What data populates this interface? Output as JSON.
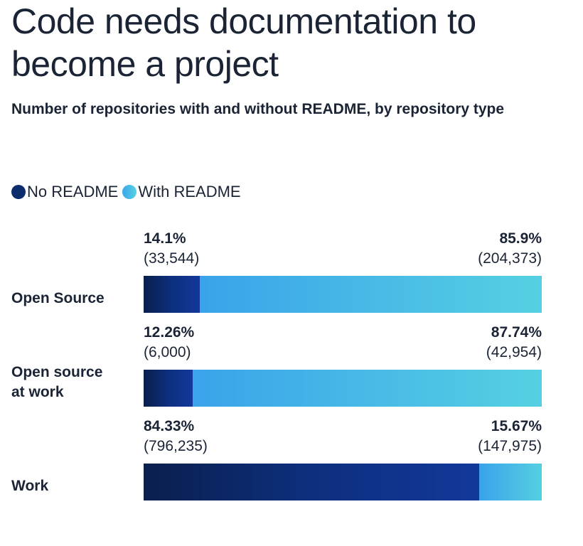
{
  "chart_data": {
    "type": "bar",
    "orientation": "horizontal",
    "stacked": true,
    "normalized": true,
    "title": "Code needs documentation to become a project",
    "subtitle": "Number of repositories with and without README, by repository type",
    "legend_position": "top-left",
    "grid": false,
    "categories": [
      "Open Source",
      "Open source at work",
      "Work"
    ],
    "series": [
      {
        "name": "No README",
        "color": "#0c2c6b",
        "percent_labels": [
          "14.1%",
          "12.26%",
          "84.33%"
        ],
        "count_labels": [
          "(33,544)",
          "(6,000)",
          "(796,235)"
        ],
        "values": [
          14.1,
          12.26,
          84.33
        ],
        "counts": [
          33544,
          6000,
          796235
        ]
      },
      {
        "name": "With README",
        "color": "#45bde6",
        "percent_labels": [
          "85.9%",
          "87.74%",
          "15.67%"
        ],
        "count_labels": [
          "(204,373)",
          "(42,954)",
          "(147,975)"
        ],
        "values": [
          85.9,
          87.74,
          15.67
        ],
        "counts": [
          204373,
          42954,
          147975
        ]
      }
    ]
  }
}
